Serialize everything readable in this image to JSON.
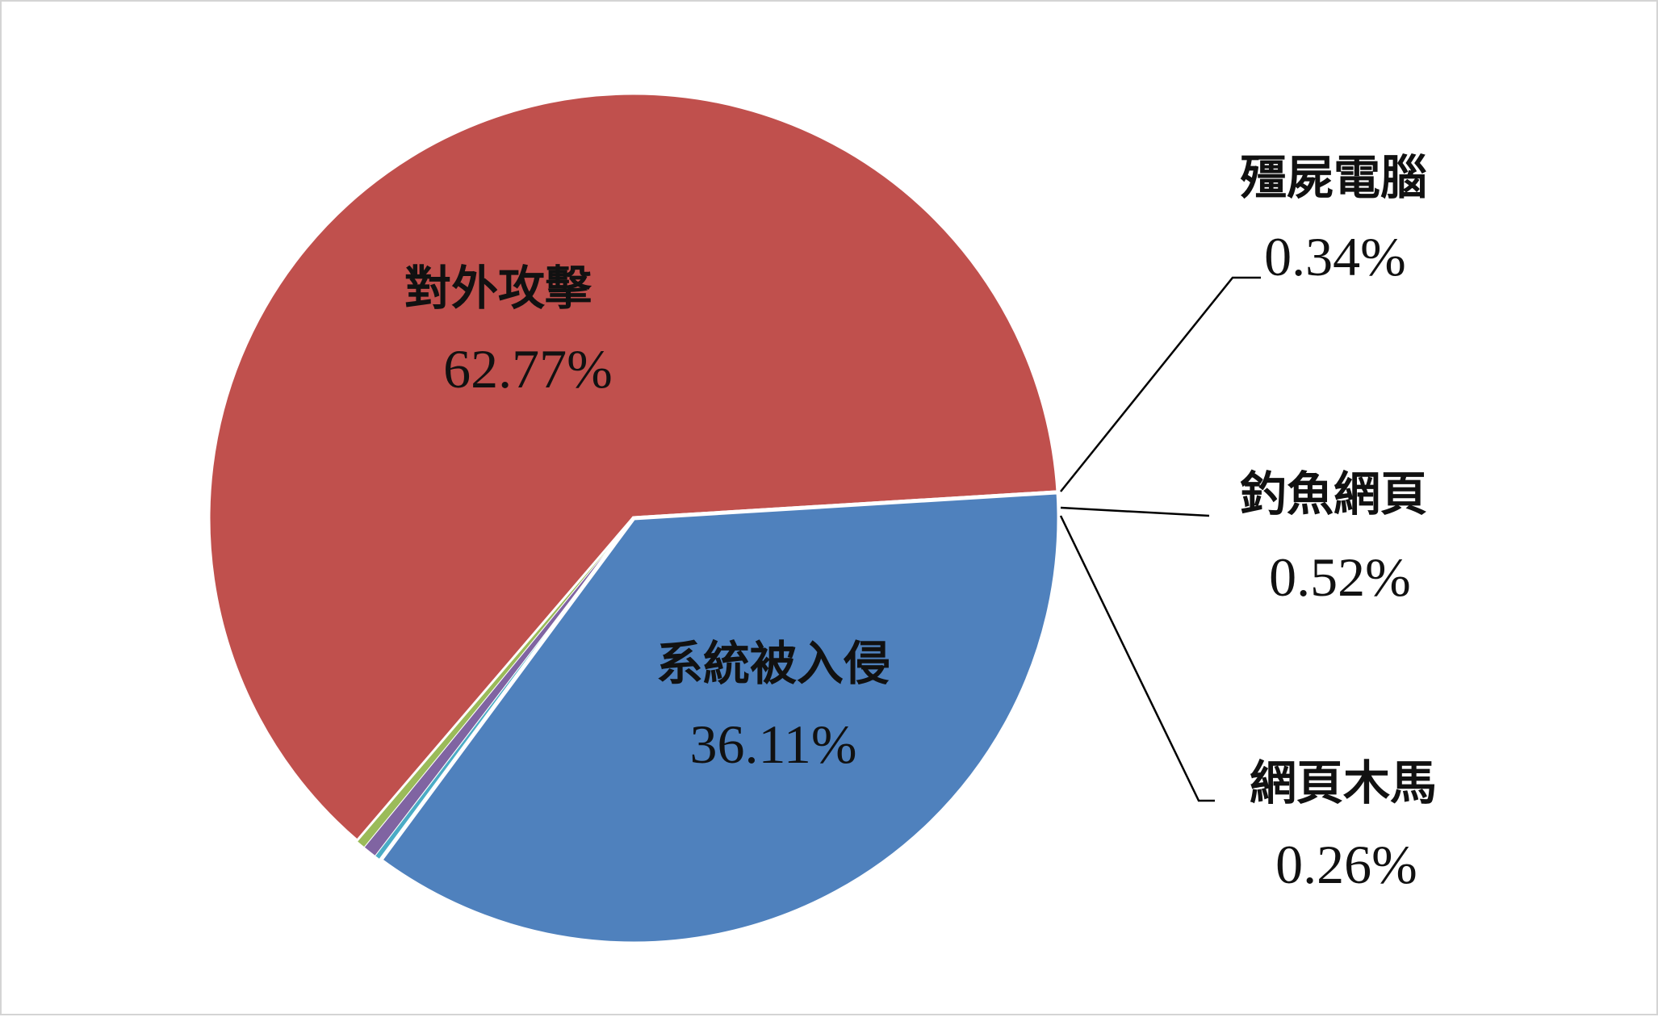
{
  "chart_data": {
    "type": "pie",
    "title": "",
    "legend": "none",
    "slices": [
      {
        "name": "對外攻擊",
        "percent_label": "62.77%",
        "value": 62.77,
        "color": "#C0504D"
      },
      {
        "name": "殭屍電腦",
        "percent_label": "0.34%",
        "value": 0.34,
        "color": "#9BBB59"
      },
      {
        "name": "釣魚網頁",
        "percent_label": "0.52%",
        "value": 0.52,
        "color": "#8064A2"
      },
      {
        "name": "網頁木馬",
        "percent_label": "0.26%",
        "value": 0.26,
        "color": "#4BACC6"
      },
      {
        "name": "系統被入侵",
        "percent_label": "36.11%",
        "value": 36.11,
        "color": "#4F81BD"
      }
    ]
  }
}
